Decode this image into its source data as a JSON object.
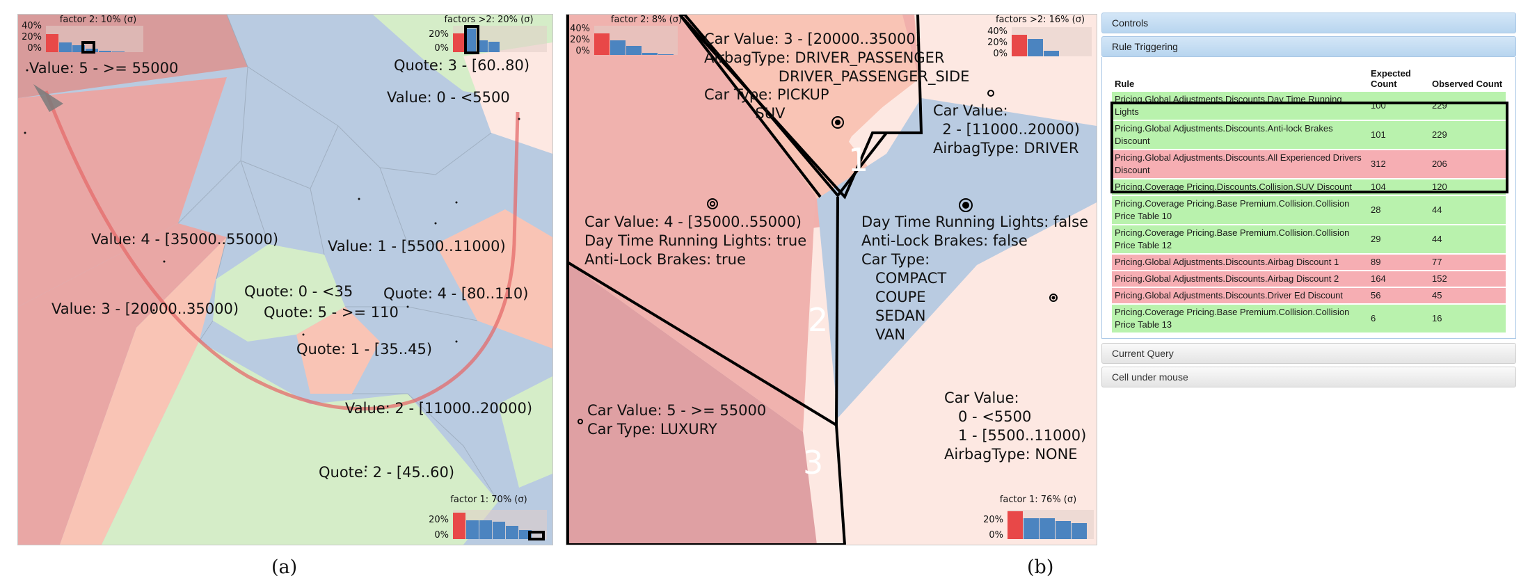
{
  "captions": {
    "a": "(a)",
    "b": "(b)"
  },
  "colors": {
    "blue": "#b9cbe1",
    "red": "#e9a7a5",
    "salmon": "#f9c4b5",
    "pink": "#fde8e2",
    "green": "#d5edc8",
    "dark_red": "#d89b9b",
    "bar_red": "#e84848",
    "bar_blue": "#4b84c0",
    "row_green": "#b9f2ad",
    "row_red": "#f6aeb3"
  },
  "panel_a": {
    "labels": {
      "l1": "Value: 5 - >= 55000",
      "l2": "Quote: 3 - [60..80)",
      "l3": "Value: 0 - <5500",
      "l4": "Value: 4 - [35000..55000)",
      "l5": "Value: 1 - [5500..11000)",
      "l6": "Quote: 0 - <35",
      "l7": "Quote: 4 - [80..110)",
      "l8": "Value: 3 - [20000..35000)",
      "l9": "Quote: 5 - >= 110",
      "l10": "Quote: 1 - [35..45)",
      "l11": "Value: 2 - [11000..20000)",
      "l12": "Quote: 2 - [45..60)"
    },
    "mini_tl": {
      "title": "factor 2: 10% (σ)",
      "ticks": [
        "40%",
        "20%",
        "0%"
      ],
      "bars": [
        0.68,
        0.38,
        0.26,
        0.14,
        0.06,
        0.02
      ]
    },
    "mini_tr": {
      "title": "factors >2: 20% (σ)",
      "ticks": [
        "20%",
        "0%"
      ],
      "bars": [
        0.7,
        0.9,
        0.45,
        0.4
      ]
    },
    "mini_br": {
      "title": "factor 1: 70% (σ)",
      "ticks": [
        "20%",
        "0%"
      ],
      "bars": [
        0.9,
        0.65,
        0.65,
        0.6,
        0.45,
        0.3
      ]
    }
  },
  "panel_b": {
    "labels": {
      "r1": "Car Value: 3 - [20000..35000)\nAirbagType: DRIVER_PASSENGER\n                DRIVER_PASSENGER_SIDE",
      "r2": "Car Type: PICKUP\n           SUV",
      "r3": "Car Value:\n  2 - [11000..20000)\nAirbagType: DRIVER",
      "r4": "Car Value: 4 - [35000..55000)\nDay Time Running Lights: true\nAnti-Lock Brakes: true",
      "r5": "Day Time Running Lights: false\nAnti-Lock Brakes: false\nCar Type:\n   COMPACT\n   COUPE\n   SEDAN\n   VAN",
      "r6": "Car Value: 5 - >= 55000\nCar Type: LUXURY",
      "r7": "Car Value:\n   0 - <5500\n   1 - [5500..11000)\nAirbagType: NONE"
    },
    "region_numbers": [
      "1",
      "2",
      "3"
    ],
    "mini_tl": {
      "title": "factor 2: 8% (σ)",
      "ticks": [
        "40%",
        "20%",
        "0%"
      ],
      "bars": [
        0.75,
        0.5,
        0.3,
        0.08,
        0.02
      ]
    },
    "mini_tr": {
      "title": "factors >2: 16% (σ)",
      "ticks": [
        "40%",
        "20%",
        "0%"
      ],
      "bars": [
        0.75,
        0.6,
        0.2
      ]
    },
    "mini_br": {
      "title": "factor 1: 76% (σ)",
      "ticks": [
        "20%",
        "0%"
      ],
      "bars": [
        0.95,
        0.72,
        0.72,
        0.62,
        0.55
      ]
    }
  },
  "side": {
    "controls_label": "Controls",
    "rule_triggering_label": "Rule Triggering",
    "columns": {
      "rule": "Rule",
      "expected": "Expected Count",
      "observed": "Observed Count"
    },
    "rows": [
      {
        "rule": "Pricing.Global Adjustments.Discounts.Day Time Running Lights",
        "expected": "100",
        "observed": "229",
        "status": "g"
      },
      {
        "rule": "Pricing.Global Adjustments.Discounts.Anti-lock Brakes Discount",
        "expected": "101",
        "observed": "229",
        "status": "g"
      },
      {
        "rule": "Pricing.Global Adjustments.Discounts.All Experienced Drivers Discount",
        "expected": "312",
        "observed": "206",
        "status": "r"
      },
      {
        "rule": "Pricing.Coverage Pricing.Discounts.Collision.SUV Discount",
        "expected": "104",
        "observed": "120",
        "status": "g"
      },
      {
        "rule": "Pricing.Coverage Pricing.Base Premium.Collision.Collision Price Table 10",
        "expected": "28",
        "observed": "44",
        "status": "g"
      },
      {
        "rule": "Pricing.Coverage Pricing.Base Premium.Collision.Collision Price Table 12",
        "expected": "29",
        "observed": "44",
        "status": "g"
      },
      {
        "rule": "Pricing.Global Adjustments.Discounts.Airbag Discount 1",
        "expected": "89",
        "observed": "77",
        "status": "r"
      },
      {
        "rule": "Pricing.Global Adjustments.Discounts.Airbag Discount 2",
        "expected": "164",
        "observed": "152",
        "status": "r"
      },
      {
        "rule": "Pricing.Global Adjustments.Discounts.Driver Ed Discount",
        "expected": "56",
        "observed": "45",
        "status": "r"
      },
      {
        "rule": "Pricing.Coverage Pricing.Base Premium.Collision.Collision Price Table 13",
        "expected": "6",
        "observed": "16",
        "status": "g"
      }
    ],
    "current_query_label": "Current Query",
    "cell_under_mouse_label": "Cell under mouse"
  }
}
